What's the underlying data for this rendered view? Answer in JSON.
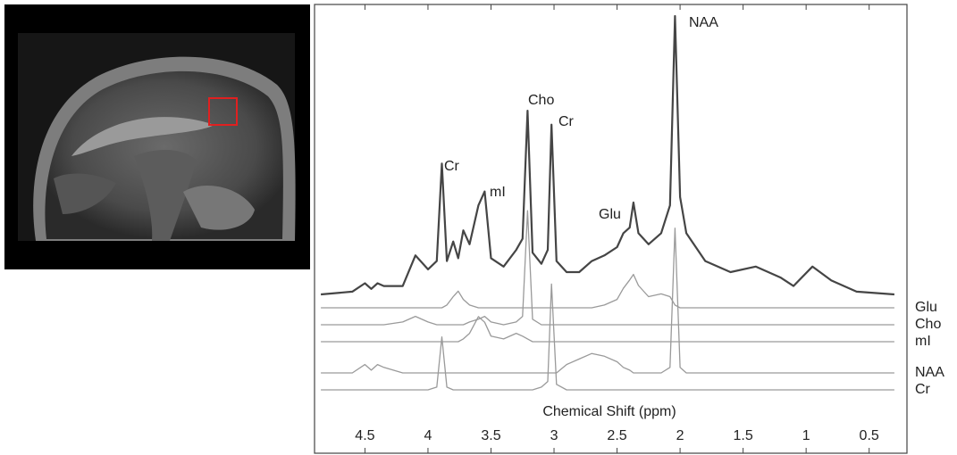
{
  "chart_data": {
    "type": "line",
    "xlabel": "Chemical Shift (ppm)",
    "x": [
      4.85,
      4.6,
      4.5,
      4.45,
      4.4,
      4.35,
      4.2,
      4.1,
      4.0,
      3.93,
      3.89,
      3.85,
      3.8,
      3.76,
      3.72,
      3.67,
      3.6,
      3.55,
      3.5,
      3.4,
      3.3,
      3.25,
      3.21,
      3.17,
      3.1,
      3.05,
      3.02,
      2.98,
      2.9,
      2.8,
      2.7,
      2.6,
      2.5,
      2.45,
      2.4,
      2.37,
      2.33,
      2.25,
      2.15,
      2.08,
      2.04,
      2.0,
      1.95,
      1.8,
      1.6,
      1.4,
      1.2,
      1.1,
      0.95,
      0.8,
      0.6,
      0.3
    ],
    "spectrum": {
      "color": "#454545",
      "values": [
        0,
        1,
        4,
        2,
        4,
        3,
        3,
        14,
        9,
        12,
        47,
        12,
        19,
        13,
        23,
        18,
        32,
        37,
        13,
        10,
        16,
        20,
        66,
        15,
        11,
        16,
        61,
        12,
        8,
        8,
        12,
        14,
        17,
        22,
        24,
        33,
        22,
        18,
        22,
        32,
        100,
        35,
        22,
        12,
        8,
        10,
        6,
        3,
        10,
        5,
        1,
        0
      ]
    },
    "series": [
      {
        "name": "Glu",
        "color": "#9a9a9a",
        "values": [
          0,
          0,
          0,
          0,
          0,
          0,
          0,
          0,
          0,
          0,
          0,
          1,
          4,
          6,
          3,
          1,
          0,
          0,
          0,
          0,
          0,
          0,
          0,
          0,
          0,
          0,
          0,
          0,
          0,
          0,
          0,
          1,
          3,
          7,
          10,
          12,
          8,
          4,
          5,
          4,
          1,
          0,
          0,
          0,
          0,
          0,
          0,
          0,
          0,
          0,
          0,
          0
        ]
      },
      {
        "name": "Cho",
        "color": "#9a9a9a",
        "values": [
          0,
          0,
          0,
          0,
          0,
          0,
          1,
          3,
          1,
          0,
          0,
          0,
          0,
          0,
          0,
          1,
          2,
          3,
          1,
          0,
          1,
          3,
          41,
          2,
          0,
          0,
          0,
          0,
          0,
          0,
          0,
          0,
          0,
          0,
          0,
          0,
          0,
          0,
          0,
          0,
          0,
          0,
          0,
          0,
          0,
          0,
          0,
          0,
          0,
          0,
          0,
          0
        ]
      },
      {
        "name": "mI",
        "color": "#9a9a9a",
        "values": [
          0,
          0,
          0,
          0,
          0,
          0,
          0,
          0,
          0,
          0,
          0,
          0,
          0,
          0,
          1,
          3,
          9,
          7,
          2,
          1,
          3,
          2,
          1,
          0,
          0,
          0,
          0,
          0,
          0,
          0,
          0,
          0,
          0,
          0,
          0,
          0,
          0,
          0,
          0,
          0,
          0,
          0,
          0,
          0,
          0,
          0,
          0,
          0,
          0,
          0,
          0,
          0
        ]
      },
      {
        "name": "NAA",
        "color": "#9a9a9a",
        "values": [
          0,
          0,
          3,
          1,
          3,
          2,
          0,
          0,
          0,
          0,
          0,
          0,
          0,
          0,
          0,
          0,
          0,
          0,
          0,
          0,
          0,
          0,
          0,
          0,
          0,
          0,
          0,
          0,
          3,
          5,
          7,
          6,
          4,
          2,
          1,
          0,
          0,
          0,
          0,
          2,
          52,
          2,
          0,
          0,
          0,
          0,
          0,
          0,
          0,
          0,
          0,
          0
        ]
      },
      {
        "name": "Cr",
        "color": "#9a9a9a",
        "values": [
          0,
          0,
          0,
          0,
          0,
          0,
          0,
          0,
          0,
          1,
          19,
          1,
          0,
          0,
          0,
          0,
          0,
          0,
          0,
          0,
          0,
          0,
          0,
          0,
          1,
          3,
          38,
          2,
          0,
          0,
          0,
          0,
          0,
          0,
          0,
          0,
          0,
          0,
          0,
          0,
          0,
          0,
          0,
          0,
          0,
          0,
          0,
          0,
          0,
          0,
          0,
          0
        ]
      }
    ],
    "annotations": [
      "Cr",
      "mI",
      "Cho",
      "Cr",
      "Glu",
      "NAA"
    ],
    "xlim": [
      4.9,
      0.2
    ],
    "xticks": [
      4.5,
      4,
      3.5,
      3,
      2.5,
      2,
      1.5,
      1,
      0.5
    ],
    "ylim": [
      0,
      100
    ]
  }
}
